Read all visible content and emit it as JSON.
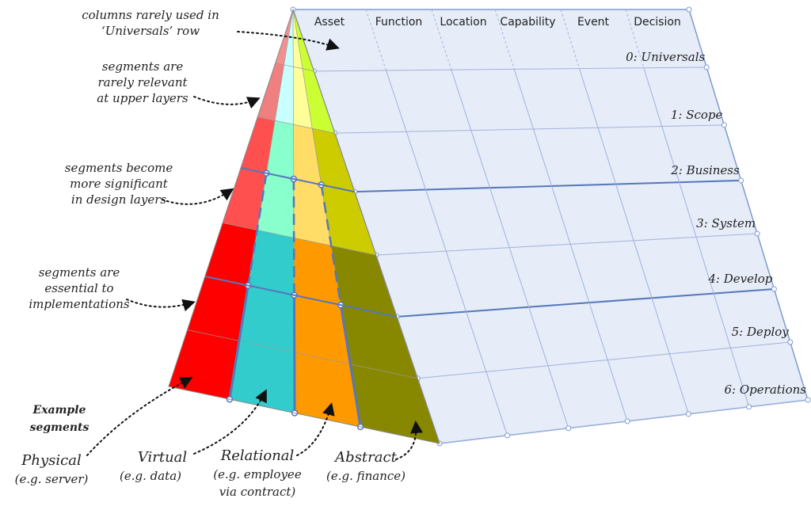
{
  "columns": [
    "Asset",
    "Function",
    "Location",
    "Capability",
    "Event",
    "Decision"
  ],
  "rows": [
    "0: Universals",
    "1: Scope",
    "2: Business",
    "3: System",
    "4: Develop",
    "5: Deploy",
    "6: Operations"
  ],
  "annotations": [
    [
      "columns rarely used in",
      "‘Universals’ row"
    ],
    [
      "segments are",
      "rarely relevant",
      "at upper layers"
    ],
    [
      "segments become",
      "more significant",
      "in design layers"
    ],
    [
      "segments are",
      "essential to",
      "implementations"
    ]
  ],
  "segments": {
    "title": [
      "Example",
      "segments"
    ],
    "items": [
      {
        "name": "Physical",
        "note": [
          "(e.g. server)"
        ]
      },
      {
        "name": "Virtual",
        "note": [
          "(e.g. data)"
        ]
      },
      {
        "name": "Relational",
        "note": [
          "(e.g. employee",
          "via contract)"
        ]
      },
      {
        "name": "Abstract",
        "note": [
          "(e.g. finance)"
        ]
      }
    ]
  }
}
